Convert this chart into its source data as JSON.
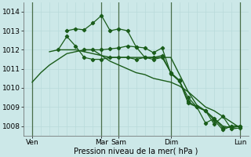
{
  "xlabel": "Pression niveau de la mer( hPa )",
  "background_color": "#cce8e8",
  "grid_color_minor": "#b8dada",
  "grid_color_major": "#88bbbb",
  "line_color": "#1a5c1a",
  "ylim": [
    1007.5,
    1014.5
  ],
  "yticks": [
    1008,
    1009,
    1010,
    1011,
    1012,
    1013,
    1014
  ],
  "xlim": [
    0,
    26
  ],
  "xtick_labels": [
    "Ven",
    "Mar",
    "Sam",
    "Dim",
    "Lun"
  ],
  "xtick_pos": [
    1,
    9,
    11,
    17,
    25
  ],
  "vlines_dark": [
    9,
    11,
    17,
    25
  ],
  "vlines_light": [
    1
  ],
  "lines": [
    {
      "x": [
        1,
        2,
        3,
        4,
        5,
        6,
        7,
        8,
        9,
        10,
        11,
        12,
        13,
        14,
        15,
        16,
        17,
        18,
        19,
        20,
        21,
        22,
        23,
        24,
        25
      ],
      "y": [
        1010.3,
        1010.8,
        1011.2,
        1011.5,
        1011.8,
        1011.9,
        1012.0,
        1012.0,
        1011.7,
        1011.4,
        1011.2,
        1011.0,
        1010.8,
        1010.7,
        1010.5,
        1010.4,
        1010.3,
        1010.1,
        1009.8,
        1009.4,
        1009.0,
        1008.8,
        1008.5,
        1008.2,
        1007.9
      ],
      "marker": false,
      "lw": 1.0
    },
    {
      "x": [
        3,
        4,
        5,
        6,
        7,
        8,
        9,
        10,
        11,
        12,
        13,
        14,
        15,
        16,
        17,
        18,
        19,
        20,
        21,
        22,
        23,
        24,
        25
      ],
      "y": [
        1011.9,
        1012.0,
        1012.0,
        1012.0,
        1011.9,
        1011.8,
        1011.7,
        1011.6,
        1011.6,
        1011.6,
        1011.6,
        1011.6,
        1011.6,
        1011.6,
        1011.6,
        1010.7,
        1009.8,
        1009.1,
        1008.8,
        1008.4,
        1008.0,
        1007.9,
        1008.0
      ],
      "marker": false,
      "lw": 1.0
    },
    {
      "x": [
        4,
        5,
        6,
        7,
        8,
        9,
        10,
        11,
        12,
        13,
        14,
        15,
        16,
        17,
        18,
        19,
        20,
        21,
        22,
        23,
        24,
        25
      ],
      "y": [
        1012.0,
        1012.7,
        1012.2,
        1011.6,
        1011.5,
        1011.5,
        1011.6,
        1011.6,
        1011.6,
        1011.5,
        1011.6,
        1011.5,
        1011.6,
        1010.8,
        1010.35,
        1009.5,
        1009.0,
        1008.8,
        1008.3,
        1007.8,
        1008.0,
        1008.0
      ],
      "marker": true,
      "lw": 0.9
    },
    {
      "x": [
        5,
        6,
        7,
        8,
        9,
        10,
        11,
        12,
        13,
        14,
        15,
        16,
        17,
        18,
        19,
        20,
        21,
        22,
        23,
        24,
        25
      ],
      "y": [
        1013.0,
        1013.1,
        1013.05,
        1013.4,
        1013.8,
        1013.0,
        1013.1,
        1013.0,
        1012.15,
        1011.6,
        1011.6,
        1011.7,
        1010.8,
        1010.4,
        1009.3,
        1009.0,
        1008.8,
        1008.1,
        1008.5,
        1007.85,
        1007.9
      ],
      "marker": true,
      "lw": 0.9
    },
    {
      "x": [
        7,
        8,
        9,
        10,
        11,
        12,
        13,
        14,
        15,
        16,
        17,
        18,
        19,
        20,
        21,
        22,
        23,
        24,
        25
      ],
      "y": [
        1012.0,
        1012.0,
        1012.0,
        1012.05,
        1012.1,
        1012.2,
        1012.15,
        1012.1,
        1011.85,
        1012.1,
        1010.75,
        1010.35,
        1009.2,
        1009.0,
        1008.15,
        1008.4,
        1007.9,
        1008.0,
        1008.0
      ],
      "marker": true,
      "lw": 0.9
    }
  ]
}
